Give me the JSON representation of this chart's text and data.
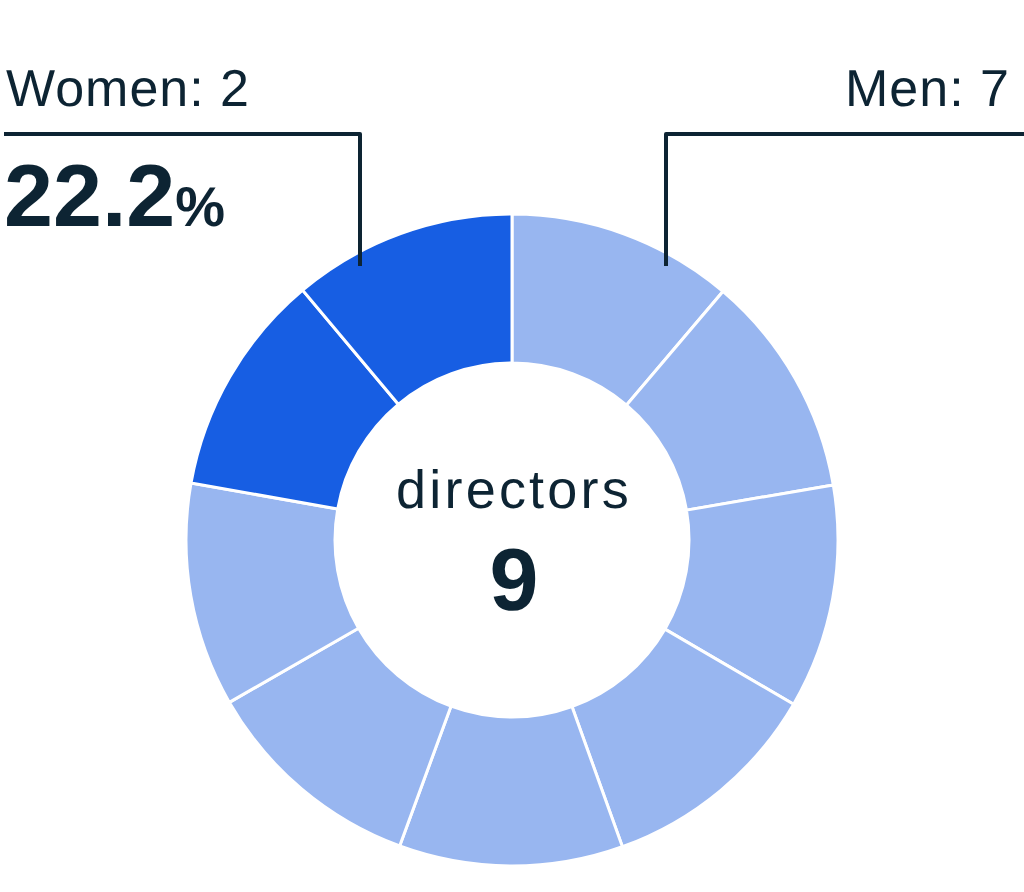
{
  "chart_data": {
    "type": "donut",
    "categories": [
      null,
      null,
      null,
      null,
      null,
      null,
      null,
      null,
      null
    ],
    "values": [
      11.2,
      11.1,
      11.1,
      11.1,
      11.1,
      11.1,
      11.1,
      11.1,
      11.1
    ],
    "colors": [
      "#98b6f0",
      "#98b6f0",
      "#98b6f0",
      "#98b6f0",
      "#98b6f0",
      "#98b6f0",
      "#98b6f0",
      "#175ee3",
      "#175ee3"
    ],
    "annotations": [
      "Women: 2",
      "22.2%",
      "Men: 7",
      "directors",
      "9"
    ]
  }
}
